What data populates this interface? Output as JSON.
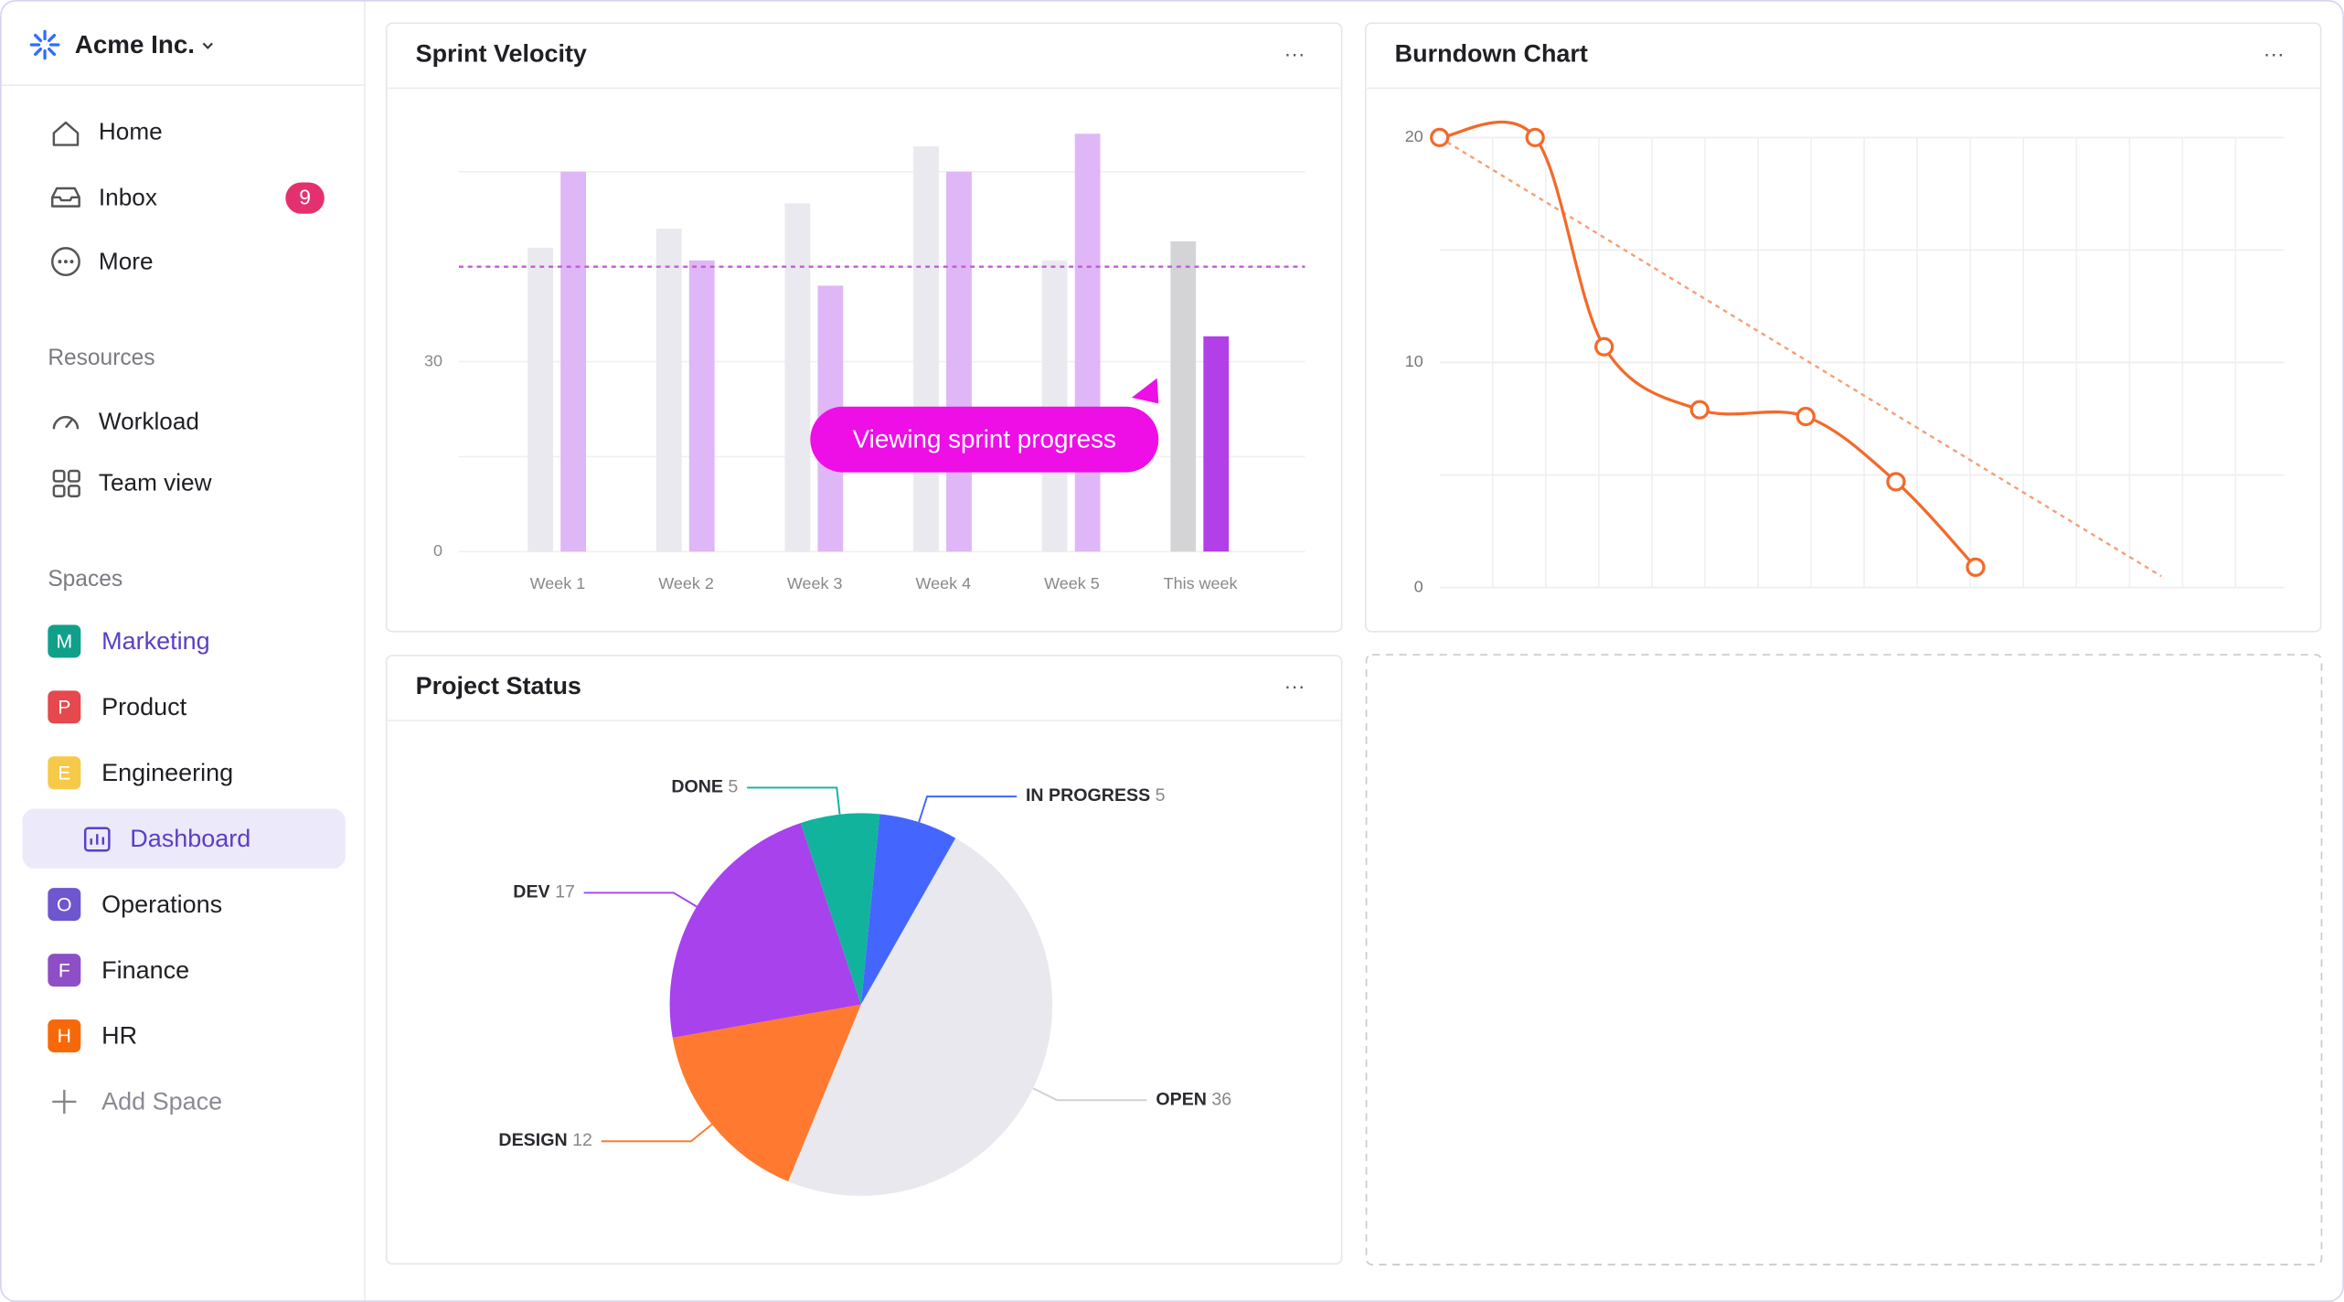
{
  "sidebar": {
    "workspace": "Acme Inc.",
    "nav": [
      {
        "label": "Home"
      },
      {
        "label": "Inbox",
        "badge": 9
      },
      {
        "label": "More"
      }
    ],
    "resources_heading": "Resources",
    "resources": [
      "Workload",
      "Team view"
    ],
    "spaces_heading": "Spaces",
    "spaces": [
      {
        "initial": "M",
        "label": "Marketing",
        "color": "#10a08a"
      },
      {
        "initial": "P",
        "label": "Product",
        "color": "#e5484d"
      },
      {
        "initial": "E",
        "label": "Engineering",
        "color": "#f7c948",
        "children": [
          "Dashboard"
        ]
      },
      {
        "initial": "O",
        "label": "Operations",
        "color": "#6e56cf"
      },
      {
        "initial": "F",
        "label": "Finance",
        "color": "#8e4ec6"
      },
      {
        "initial": "H",
        "label": "HR",
        "color": "#f76808"
      }
    ],
    "add_space": "Add Space"
  },
  "widgets": [
    {
      "title": "Sprint Velocity",
      "menu": "···",
      "chart": {
        "type": "bar",
        "categories": [
          "Week 1",
          "Week 2",
          "Week 3",
          "Week 4",
          "Week 5",
          "This week"
        ],
        "series": [
          {
            "color": "#e9e9ef",
            "values": [
              48,
              51,
              55,
              64,
              46,
              49
            ]
          },
          {
            "color": "#dfb6f6",
            "values": [
              60,
              46,
              42,
              60,
              66,
              34
            ]
          }
        ],
        "highlight_colors": [
          "#d4d4d6",
          "#b23fe8"
        ],
        "target": 45,
        "target_color": "#c35ad6",
        "ylim": [
          0,
          68
        ],
        "yticks": [
          0,
          30
        ],
        "gridlines": [
          15,
          45,
          60
        ],
        "annotation": "Viewing sprint progress"
      }
    },
    {
      "title": "Burndown Chart",
      "menu": "···",
      "chart": {
        "type": "line",
        "x": [
          0,
          1.8,
          3.1,
          4.9,
          6.9,
          8.6,
          10.1
        ],
        "series": [
          {
            "color": "#f26a2b",
            "values": [
              20,
              20,
              10.7,
              7.9,
              7.6,
              4.7,
              0.9
            ]
          }
        ],
        "ideal": {
          "x": [
            0,
            13.6
          ],
          "values": [
            20,
            0.5
          ],
          "color": "#f5a07a"
        },
        "xlim": [
          0,
          16
        ],
        "xgrid_step": 1,
        "ylim": [
          0,
          20
        ],
        "yticks": [
          0,
          10,
          20
        ],
        "gridlines": [
          5,
          15
        ]
      }
    },
    {
      "title": "Project Status",
      "menu": "···",
      "chart": {
        "type": "pie",
        "categories": [
          "DEV",
          "DONE",
          "IN PROGRESS",
          "OPEN",
          "DESIGN"
        ],
        "values": [
          17,
          5,
          5,
          36,
          12
        ],
        "colors": [
          "#a742ec",
          "#12b39c",
          "#4466ff",
          "#e8e8ee",
          "#ff7a30"
        ]
      }
    }
  ]
}
